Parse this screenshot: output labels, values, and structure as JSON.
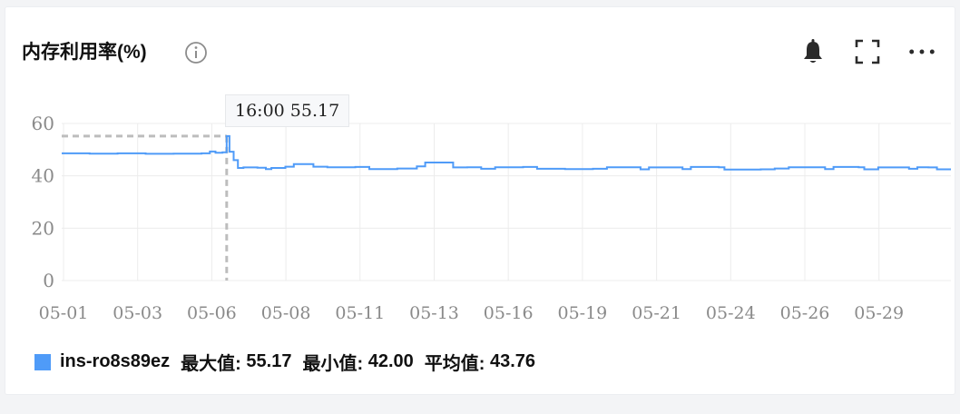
{
  "panel": {
    "title": "内存利用率(%)",
    "icons": {
      "info": "info-circle-icon",
      "bell": "bell-icon",
      "fullscreen": "fullscreen-icon",
      "more": "more-horizontal-icon"
    }
  },
  "tooltip": {
    "time": "16:00",
    "value": "55.17",
    "text": "16:00 55.17"
  },
  "legend": {
    "series_name": "ins-ro8s89ez",
    "max_label": "最大值:",
    "max_value": "55.17",
    "min_label": "最小值:",
    "min_value": "42.00",
    "avg_label": "平均值:",
    "avg_value": "43.76"
  },
  "colors": {
    "series": "#4f9bf8",
    "grid": "#ececec",
    "crosshair": "#bdbdbd",
    "axis_text": "#8a8a8a"
  },
  "chart_data": {
    "type": "line",
    "title": "内存利用率(%)",
    "xlabel": "",
    "ylabel": "",
    "ylim": [
      0,
      60
    ],
    "y_ticks": [
      "0",
      "20",
      "40",
      "60"
    ],
    "x_ticks": [
      "05-01",
      "05-03",
      "05-06",
      "05-08",
      "05-11",
      "05-13",
      "05-16",
      "05-19",
      "05-21",
      "05-24",
      "05-26",
      "05-29"
    ],
    "x_range": [
      0,
      31.8
    ],
    "grid": true,
    "legend_position": "bottom-left",
    "series": [
      {
        "name": "ins-ro8s89ez",
        "points": [
          [
            0.0,
            48.6
          ],
          [
            1.0,
            48.5
          ],
          [
            2.0,
            48.6
          ],
          [
            3.0,
            48.4
          ],
          [
            4.0,
            48.5
          ],
          [
            5.0,
            48.6
          ],
          [
            5.3,
            49.3
          ],
          [
            5.5,
            48.8
          ],
          [
            5.75,
            49.0
          ],
          [
            5.9,
            55.17
          ],
          [
            6.0,
            49.2
          ],
          [
            6.15,
            46.0
          ],
          [
            6.3,
            43.0
          ],
          [
            6.5,
            43.2
          ],
          [
            7.0,
            43.1
          ],
          [
            7.3,
            42.6
          ],
          [
            7.5,
            43.0
          ],
          [
            8.0,
            43.5
          ],
          [
            8.3,
            44.5
          ],
          [
            8.9,
            44.5
          ],
          [
            9.0,
            43.5
          ],
          [
            9.5,
            43.3
          ],
          [
            10.5,
            43.4
          ],
          [
            11.0,
            42.6
          ],
          [
            12.0,
            42.8
          ],
          [
            12.7,
            43.6
          ],
          [
            13.0,
            45.1
          ],
          [
            13.9,
            45.1
          ],
          [
            14.0,
            43.2
          ],
          [
            14.5,
            43.3
          ],
          [
            15.0,
            42.7
          ],
          [
            15.5,
            43.3
          ],
          [
            16.5,
            43.4
          ],
          [
            17.0,
            42.7
          ],
          [
            18.0,
            42.6
          ],
          [
            19.0,
            42.7
          ],
          [
            19.5,
            43.3
          ],
          [
            20.5,
            43.3
          ],
          [
            20.7,
            42.5
          ],
          [
            21.0,
            43.2
          ],
          [
            22.0,
            43.2
          ],
          [
            22.2,
            42.6
          ],
          [
            22.5,
            43.4
          ],
          [
            23.5,
            43.3
          ],
          [
            23.7,
            42.4
          ],
          [
            25.0,
            42.5
          ],
          [
            25.5,
            42.8
          ],
          [
            26.0,
            43.3
          ],
          [
            27.0,
            43.3
          ],
          [
            27.3,
            42.6
          ],
          [
            27.6,
            43.4
          ],
          [
            28.5,
            43.3
          ],
          [
            28.7,
            42.5
          ],
          [
            29.2,
            43.2
          ],
          [
            30.0,
            43.2
          ],
          [
            30.3,
            42.7
          ],
          [
            30.6,
            43.3
          ],
          [
            31.0,
            43.2
          ],
          [
            31.3,
            42.5
          ],
          [
            31.8,
            42.5
          ]
        ]
      }
    ],
    "highlight": {
      "x": 5.9,
      "y": 55.17,
      "label": "16:00"
    }
  }
}
